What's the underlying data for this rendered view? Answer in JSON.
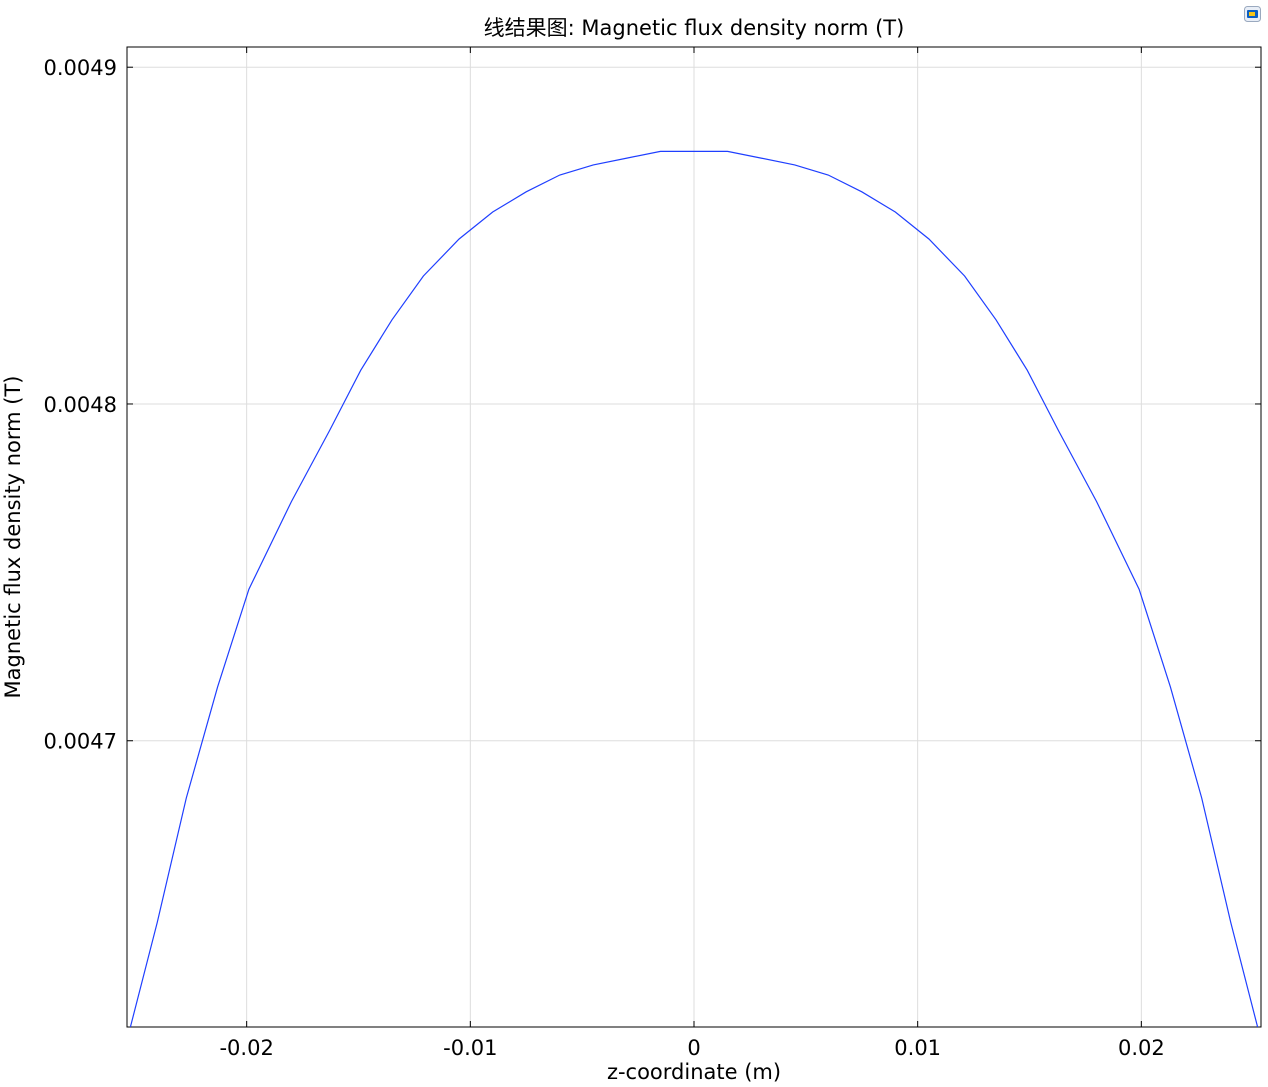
{
  "chart_data": {
    "type": "line",
    "title": "线结果图: Magnetic flux density norm (T)",
    "xlabel": "z-coordinate (m)",
    "ylabel": "Magnetic flux density norm (T)",
    "xlim": [
      -0.02535,
      0.02535
    ],
    "ylim": [
      0.004615,
      0.004906
    ],
    "xticks": [
      -0.02,
      -0.01,
      0,
      0.01,
      0.02
    ],
    "xtick_labels": [
      "-0.02",
      "-0.01",
      "0",
      "0.01",
      "0.02"
    ],
    "yticks": [
      0.0047,
      0.0048,
      0.0049
    ],
    "ytick_labels": [
      "0.0047",
      "0.0048",
      "0.0049"
    ],
    "grid": true,
    "legend": false,
    "line_color": "#1f3fff",
    "series": [
      {
        "x": [
          -0.0252,
          -0.024,
          -0.0227,
          -0.0213,
          -0.0199,
          -0.018,
          -0.0163,
          -0.0149,
          -0.0135,
          -0.0121,
          -0.0105,
          -0.009,
          -0.0075,
          -0.006,
          -0.0045,
          -0.003,
          -0.0015,
          0.0,
          0.0015,
          0.003,
          0.0045,
          0.006,
          0.0075,
          0.009,
          0.0105,
          0.0121,
          0.0135,
          0.0149,
          0.0163,
          0.018,
          0.0199,
          0.0213,
          0.0227,
          0.024,
          0.0252
        ],
        "y": [
          0.004615,
          0.004646,
          0.004683,
          0.004716,
          0.004745,
          0.004771,
          0.004792,
          0.00481,
          0.004825,
          0.004838,
          0.004849,
          0.004857,
          0.004863,
          0.004868,
          0.004871,
          0.004873,
          0.004875,
          0.004875,
          0.004875,
          0.004873,
          0.004871,
          0.004868,
          0.004863,
          0.004857,
          0.004849,
          0.004838,
          0.004825,
          0.00481,
          0.004792,
          0.004771,
          0.004745,
          0.004716,
          0.004683,
          0.004646,
          0.004615
        ]
      }
    ]
  },
  "toolbar": {
    "icon_name": "window-icon",
    "icon_colors": [
      "#0a5fc4",
      "#f5c518"
    ]
  }
}
